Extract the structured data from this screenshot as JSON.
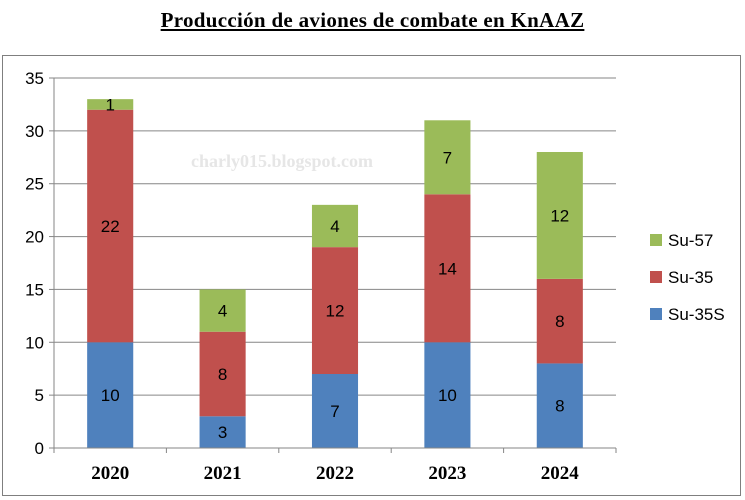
{
  "chart_data": {
    "type": "bar",
    "stacked": true,
    "title": "Producción de aviones de combate en KnAAZ",
    "watermark": "charly015.blogspot.com",
    "categories": [
      "2020",
      "2021",
      "2022",
      "2023",
      "2024"
    ],
    "series": [
      {
        "name": "Su-35S",
        "color": "#4f81bd",
        "values": [
          10,
          3,
          7,
          10,
          8
        ]
      },
      {
        "name": "Su-35",
        "color": "#c0504d",
        "values": [
          22,
          8,
          12,
          14,
          8
        ]
      },
      {
        "name": "Su-57",
        "color": "#9bbb59",
        "values": [
          1,
          4,
          4,
          7,
          12
        ]
      }
    ],
    "ylim": [
      0,
      35
    ],
    "yticks": [
      0,
      5,
      10,
      15,
      20,
      25,
      30,
      35
    ],
    "grid": true,
    "legend": "right"
  }
}
